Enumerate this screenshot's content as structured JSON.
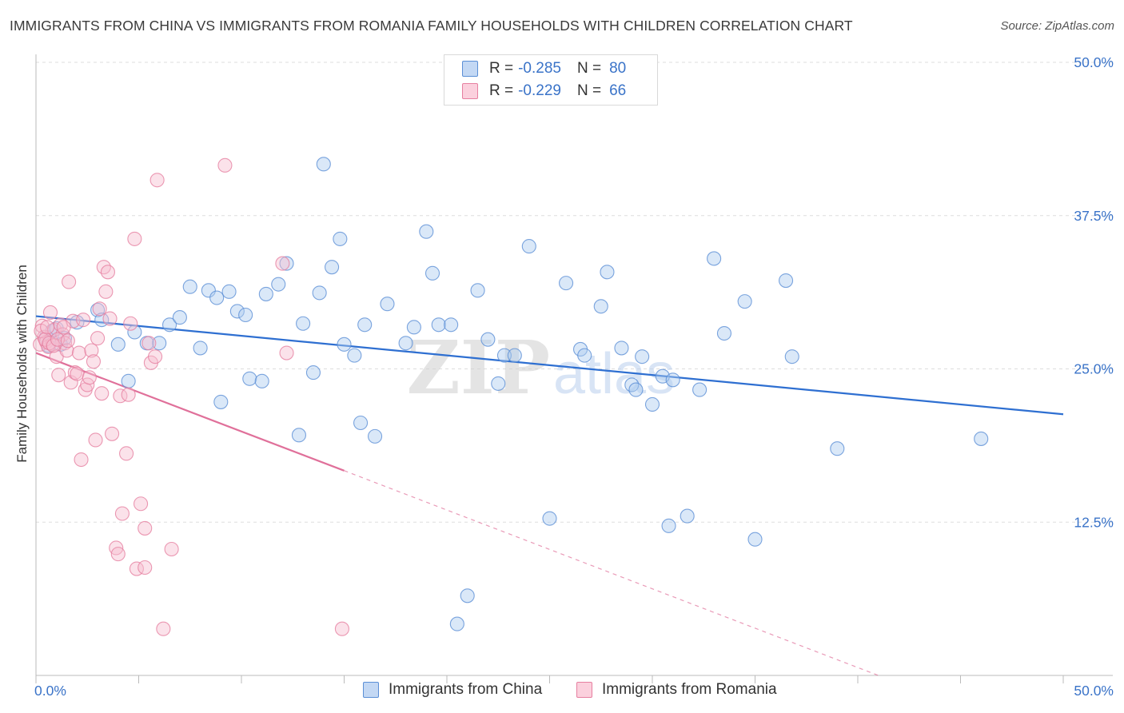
{
  "header": {
    "title": "IMMIGRANTS FROM CHINA VS IMMIGRANTS FROM ROMANIA FAMILY HOUSEHOLDS WITH CHILDREN CORRELATION CHART",
    "source": "Source: ZipAtlas.com"
  },
  "legend": {
    "china": {
      "r_label": "R = ",
      "r_value": "-0.285",
      "n_label": "N = ",
      "n_value": "80"
    },
    "romania": {
      "r_label": "R = ",
      "r_value": "-0.229",
      "n_label": "N = ",
      "n_value": "66"
    }
  },
  "colors": {
    "china_fill": "#aecbf0",
    "china_stroke": "#5b8fd6",
    "china_line": "#2e6fd1",
    "romania_fill": "#f7bfd0",
    "romania_stroke": "#e67fa0",
    "romania_line": "#e0709a",
    "tick_text": "#3a73c8",
    "grid": "#dddddd"
  },
  "chart_data": {
    "type": "scatter",
    "title": "IMMIGRANTS FROM CHINA VS IMMIGRANTS FROM ROMANIA FAMILY HOUSEHOLDS WITH CHILDREN CORRELATION CHART",
    "xlabel": "",
    "ylabel": "Family Households with Children",
    "xlim": [
      0,
      50
    ],
    "ylim": [
      0,
      50
    ],
    "x_tick_labels": [
      "0.0%",
      "50.0%"
    ],
    "y_ticks": [
      12.5,
      25.0,
      37.5,
      50.0
    ],
    "y_tick_labels": [
      "12.5%",
      "25.0%",
      "37.5%",
      "50.0%"
    ],
    "grid": "horizontal dashed",
    "watermark": "ZIPatlas",
    "series": [
      {
        "name": "Immigrants from China",
        "color": "#5b8fd6",
        "trend": {
          "x": [
            0,
            50
          ],
          "y": [
            29.3,
            21.3
          ],
          "style": "solid"
        },
        "points": [
          [
            0.5,
            27.6
          ],
          [
            0.6,
            26.9
          ],
          [
            0.8,
            28.1
          ],
          [
            1.0,
            28.3
          ],
          [
            1.2,
            27.0
          ],
          [
            1.4,
            27.5
          ],
          [
            2.0,
            28.8
          ],
          [
            3.0,
            29.8
          ],
          [
            3.2,
            29.0
          ],
          [
            4.0,
            27.0
          ],
          [
            4.5,
            24.0
          ],
          [
            4.8,
            28.0
          ],
          [
            5.4,
            27.1
          ],
          [
            6.0,
            27.1
          ],
          [
            6.5,
            28.6
          ],
          [
            7.0,
            29.2
          ],
          [
            7.5,
            31.7
          ],
          [
            8.0,
            26.7
          ],
          [
            8.4,
            31.4
          ],
          [
            8.8,
            30.8
          ],
          [
            9.0,
            22.3
          ],
          [
            9.4,
            31.3
          ],
          [
            9.8,
            29.7
          ],
          [
            10.2,
            29.4
          ],
          [
            10.4,
            24.2
          ],
          [
            11.0,
            24.0
          ],
          [
            11.2,
            31.1
          ],
          [
            11.8,
            31.9
          ],
          [
            12.2,
            33.6
          ],
          [
            12.8,
            19.6
          ],
          [
            13.0,
            28.7
          ],
          [
            13.5,
            24.7
          ],
          [
            13.8,
            31.2
          ],
          [
            14.4,
            33.3
          ],
          [
            14.0,
            41.7
          ],
          [
            14.8,
            35.6
          ],
          [
            15.0,
            27.0
          ],
          [
            15.5,
            26.1
          ],
          [
            15.8,
            20.6
          ],
          [
            16.0,
            28.6
          ],
          [
            16.5,
            19.5
          ],
          [
            17.1,
            30.3
          ],
          [
            18.0,
            27.1
          ],
          [
            18.4,
            28.4
          ],
          [
            19.0,
            36.2
          ],
          [
            19.3,
            32.8
          ],
          [
            19.6,
            28.6
          ],
          [
            20.2,
            28.6
          ],
          [
            20.5,
            4.2
          ],
          [
            21.0,
            6.5
          ],
          [
            21.5,
            31.4
          ],
          [
            22.0,
            27.4
          ],
          [
            22.5,
            23.8
          ],
          [
            22.8,
            26.1
          ],
          [
            23.3,
            26.1
          ],
          [
            24.0,
            35.0
          ],
          [
            25.0,
            12.8
          ],
          [
            25.8,
            32.0
          ],
          [
            26.5,
            26.6
          ],
          [
            26.7,
            26.1
          ],
          [
            27.5,
            30.1
          ],
          [
            27.8,
            32.9
          ],
          [
            28.5,
            26.7
          ],
          [
            29.0,
            23.7
          ],
          [
            29.2,
            23.3
          ],
          [
            29.5,
            26.0
          ],
          [
            30.0,
            22.1
          ],
          [
            30.5,
            24.4
          ],
          [
            30.8,
            12.2
          ],
          [
            31.0,
            24.1
          ],
          [
            31.7,
            13.0
          ],
          [
            32.3,
            23.3
          ],
          [
            33.0,
            34.0
          ],
          [
            33.5,
            27.9
          ],
          [
            34.5,
            30.5
          ],
          [
            35.0,
            11.1
          ],
          [
            36.5,
            32.2
          ],
          [
            36.8,
            26.0
          ],
          [
            39.0,
            18.5
          ],
          [
            46.0,
            19.3
          ]
        ]
      },
      {
        "name": "Immigrants from Romania",
        "color": "#e67fa0",
        "trend": {
          "x": [
            0,
            15
          ],
          "y": [
            26.3,
            16.7
          ],
          "style": "solid",
          "extended_dashed_to": [
            41.0,
            0
          ]
        },
        "points": [
          [
            0.2,
            27.0
          ],
          [
            0.3,
            28.5
          ],
          [
            0.4,
            27.6
          ],
          [
            0.5,
            27.2
          ],
          [
            0.6,
            26.8
          ],
          [
            0.7,
            29.6
          ],
          [
            0.8,
            27.0
          ],
          [
            0.9,
            28.2
          ],
          [
            1.0,
            26.0
          ],
          [
            1.1,
            24.5
          ],
          [
            1.2,
            28.6
          ],
          [
            1.3,
            27.8
          ],
          [
            1.4,
            27.1
          ],
          [
            1.5,
            26.5
          ],
          [
            1.6,
            32.1
          ],
          [
            1.7,
            23.9
          ],
          [
            1.8,
            28.9
          ],
          [
            1.9,
            24.7
          ],
          [
            2.0,
            24.6
          ],
          [
            2.1,
            26.3
          ],
          [
            2.2,
            17.6
          ],
          [
            2.3,
            29.0
          ],
          [
            2.4,
            23.3
          ],
          [
            2.5,
            23.7
          ],
          [
            2.6,
            24.3
          ],
          [
            2.7,
            26.5
          ],
          [
            2.8,
            25.6
          ],
          [
            2.9,
            19.2
          ],
          [
            3.0,
            27.5
          ],
          [
            3.1,
            29.9
          ],
          [
            3.2,
            23.0
          ],
          [
            3.3,
            33.3
          ],
          [
            3.4,
            31.3
          ],
          [
            3.5,
            32.9
          ],
          [
            3.6,
            29.1
          ],
          [
            3.7,
            19.7
          ],
          [
            3.9,
            10.4
          ],
          [
            4.0,
            9.9
          ],
          [
            4.1,
            22.8
          ],
          [
            4.2,
            13.2
          ],
          [
            4.4,
            18.1
          ],
          [
            4.5,
            22.9
          ],
          [
            4.6,
            28.7
          ],
          [
            4.8,
            35.6
          ],
          [
            4.9,
            8.7
          ],
          [
            5.1,
            14.0
          ],
          [
            5.3,
            8.8
          ],
          [
            5.3,
            12.0
          ],
          [
            5.5,
            27.1
          ],
          [
            5.6,
            25.5
          ],
          [
            5.8,
            26.0
          ],
          [
            5.9,
            40.4
          ],
          [
            6.2,
            3.8
          ],
          [
            6.6,
            10.3
          ],
          [
            9.2,
            41.6
          ],
          [
            12.0,
            33.6
          ],
          [
            12.2,
            26.3
          ],
          [
            14.9,
            3.8
          ],
          [
            0.25,
            28.1
          ],
          [
            0.45,
            27.4
          ],
          [
            0.55,
            28.4
          ],
          [
            0.65,
            27.1
          ],
          [
            0.85,
            26.9
          ],
          [
            1.05,
            27.4
          ],
          [
            1.35,
            28.4
          ],
          [
            1.55,
            27.3
          ]
        ]
      }
    ]
  },
  "axis_labels": {
    "y_title": "Family Households with Children",
    "x_min": "0.0%",
    "x_max": "50.0%"
  }
}
